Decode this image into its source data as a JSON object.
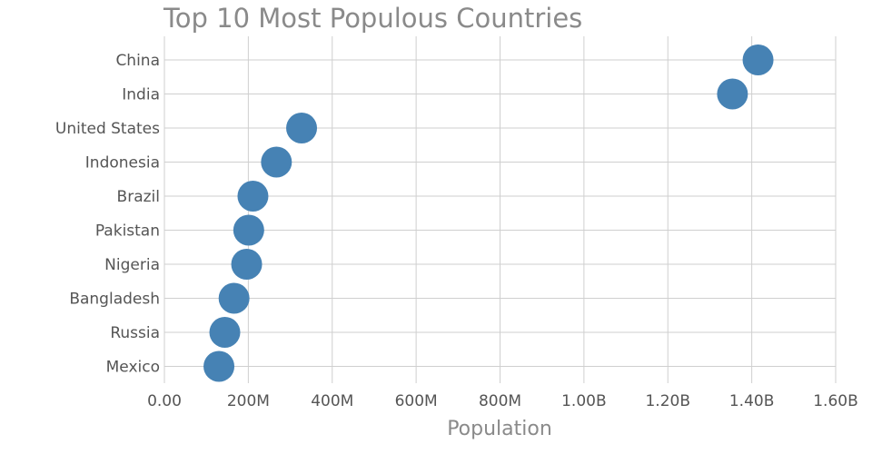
{
  "chart_data": {
    "type": "scatter",
    "title": "Top 10 Most Populous Countries",
    "xlabel": "Population",
    "ylabel": "",
    "categories": [
      "China",
      "India",
      "United States",
      "Indonesia",
      "Brazil",
      "Pakistan",
      "Nigeria",
      "Bangladesh",
      "Russia",
      "Mexico"
    ],
    "values": [
      1415000000,
      1354000000,
      327000000,
      267000000,
      211000000,
      201000000,
      196000000,
      166000000,
      144000000,
      130000000
    ],
    "xlim": [
      0,
      1600000000
    ],
    "x_ticks": [
      0,
      200000000,
      400000000,
      600000000,
      800000000,
      1000000000,
      1200000000,
      1400000000,
      1600000000
    ],
    "x_tick_labels": [
      "0.00",
      "200M",
      "400M",
      "600M",
      "800M",
      "1.00B",
      "1.20B",
      "1.40B",
      "1.60B"
    ],
    "grid": true,
    "legend": "none",
    "marker_color": "#4682b4",
    "grid_color": "#cfcfcf"
  }
}
